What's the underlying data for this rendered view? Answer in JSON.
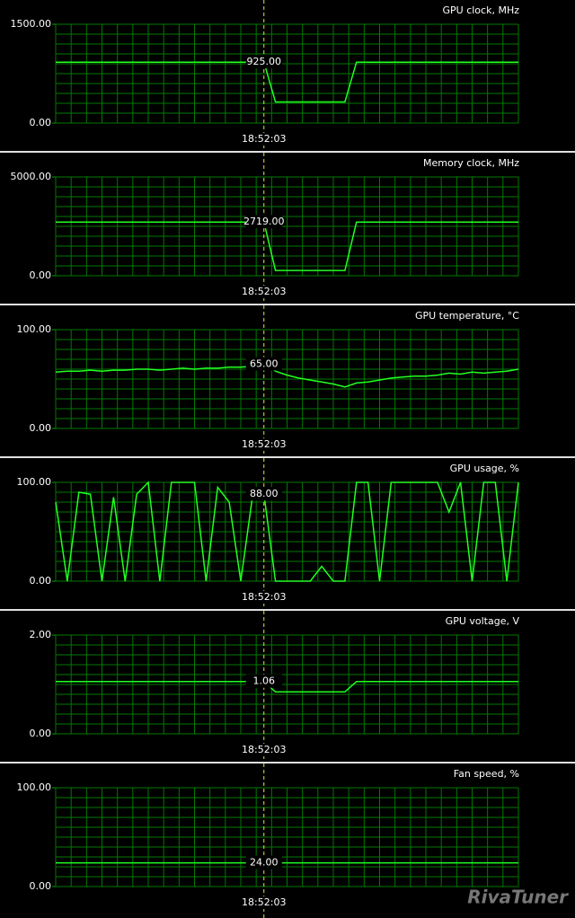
{
  "chart_data": [
    {
      "type": "line",
      "title": "GPU clock, MHz",
      "color": "#22ff22",
      "ylim": [
        0,
        1500
      ],
      "yticks": [
        {
          "value": 0,
          "label": "0.00"
        },
        {
          "value": 1500,
          "label": "1500.00"
        }
      ],
      "categories": [
        null,
        null,
        null,
        null,
        null,
        null,
        null,
        null,
        null,
        null,
        null,
        null,
        null,
        null,
        null,
        null,
        null,
        null,
        "18:52:03",
        null,
        null,
        null,
        null,
        null,
        null,
        null,
        null,
        null,
        null,
        null,
        null,
        null,
        null,
        null,
        null,
        null,
        null,
        null,
        null,
        null,
        null
      ],
      "values": [
        925,
        925,
        925,
        925,
        925,
        925,
        925,
        925,
        925,
        925,
        925,
        925,
        925,
        925,
        925,
        925,
        925,
        925,
        925,
        320,
        320,
        320,
        320,
        320,
        320,
        320,
        925,
        925,
        925,
        925,
        925,
        925,
        925,
        925,
        925,
        925,
        925,
        925,
        925,
        925,
        925
      ],
      "value_labels": [
        null,
        null,
        null,
        null,
        null,
        null,
        null,
        null,
        null,
        null,
        null,
        null,
        null,
        null,
        null,
        null,
        null,
        null,
        "925.00",
        null,
        null,
        null,
        null,
        null,
        null,
        null,
        null,
        null,
        null,
        null,
        null,
        null,
        null,
        null,
        null,
        null,
        null,
        null,
        null,
        null,
        null
      ]
    },
    {
      "type": "line",
      "title": "Memory clock, MHz",
      "color": "#22ff22",
      "ylim": [
        0,
        5000
      ],
      "yticks": [
        {
          "value": 0,
          "label": "0.00"
        },
        {
          "value": 5000,
          "label": "5000.00"
        }
      ],
      "categories": [
        null,
        null,
        null,
        null,
        null,
        null,
        null,
        null,
        null,
        null,
        null,
        null,
        null,
        null,
        null,
        null,
        null,
        null,
        "18:52:03",
        null,
        null,
        null,
        null,
        null,
        null,
        null,
        null,
        null,
        null,
        null,
        null,
        null,
        null,
        null,
        null,
        null,
        null,
        null,
        null,
        null,
        null
      ],
      "values": [
        2719,
        2719,
        2719,
        2719,
        2719,
        2719,
        2719,
        2719,
        2719,
        2719,
        2719,
        2719,
        2719,
        2719,
        2719,
        2719,
        2719,
        2719,
        2719,
        270,
        270,
        270,
        270,
        270,
        270,
        270,
        2719,
        2719,
        2719,
        2719,
        2719,
        2719,
        2719,
        2719,
        2719,
        2719,
        2719,
        2719,
        2719,
        2719,
        2719
      ],
      "value_labels": [
        null,
        null,
        null,
        null,
        null,
        null,
        null,
        null,
        null,
        null,
        null,
        null,
        null,
        null,
        null,
        null,
        null,
        null,
        "2719.00",
        null,
        null,
        null,
        null,
        null,
        null,
        null,
        null,
        null,
        null,
        null,
        null,
        null,
        null,
        null,
        null,
        null,
        null,
        null,
        null,
        null,
        null
      ]
    },
    {
      "type": "line",
      "title": "GPU temperature, °C",
      "color": "#22ff22",
      "ylim": [
        0,
        100
      ],
      "yticks": [
        {
          "value": 0,
          "label": "0.00"
        },
        {
          "value": 100,
          "label": "100.00"
        }
      ],
      "categories": [
        null,
        null,
        null,
        null,
        null,
        null,
        null,
        null,
        null,
        null,
        null,
        null,
        null,
        null,
        null,
        null,
        null,
        null,
        "18:52:03",
        null,
        null,
        null,
        null,
        null,
        null,
        null,
        null,
        null,
        null,
        null,
        null,
        null,
        null,
        null,
        null,
        null,
        null,
        null,
        null,
        null,
        null
      ],
      "values": [
        57,
        58,
        58,
        59,
        58,
        59,
        59,
        60,
        60,
        59,
        60,
        61,
        60,
        61,
        61,
        62,
        62,
        63,
        65,
        58,
        54,
        51,
        49,
        47,
        45,
        42,
        46,
        47,
        49,
        51,
        52,
        53,
        53,
        54,
        56,
        55,
        57,
        56,
        57,
        58,
        60
      ],
      "value_labels": [
        null,
        null,
        null,
        null,
        null,
        null,
        null,
        null,
        null,
        null,
        null,
        null,
        null,
        null,
        null,
        null,
        null,
        null,
        "65.00",
        null,
        null,
        null,
        null,
        null,
        null,
        null,
        null,
        null,
        null,
        null,
        null,
        null,
        null,
        null,
        null,
        null,
        null,
        null,
        null,
        null,
        null
      ]
    },
    {
      "type": "line",
      "title": "GPU usage, %",
      "color": "#22ff22",
      "ylim": [
        0,
        100
      ],
      "yticks": [
        {
          "value": 0,
          "label": "0.00"
        },
        {
          "value": 100,
          "label": "100.00"
        }
      ],
      "categories": [
        null,
        null,
        null,
        null,
        null,
        null,
        null,
        null,
        null,
        null,
        null,
        null,
        null,
        null,
        null,
        null,
        null,
        null,
        "18:52:03",
        null,
        null,
        null,
        null,
        null,
        null,
        null,
        null,
        null,
        null,
        null,
        null,
        null,
        null,
        null,
        null,
        null,
        null,
        null,
        null,
        null,
        null
      ],
      "values": [
        80,
        0,
        90,
        88,
        0,
        85,
        0,
        88,
        100,
        0,
        100,
        100,
        100,
        0,
        95,
        80,
        0,
        85,
        88,
        0,
        0,
        0,
        0,
        15,
        0,
        0,
        100,
        100,
        0,
        100,
        100,
        100,
        100,
        100,
        70,
        100,
        0,
        100,
        100,
        0,
        100
      ],
      "value_labels": [
        null,
        null,
        null,
        null,
        null,
        null,
        null,
        null,
        null,
        null,
        null,
        null,
        null,
        null,
        null,
        null,
        null,
        null,
        "88.00",
        null,
        null,
        null,
        null,
        null,
        null,
        null,
        null,
        null,
        null,
        null,
        null,
        null,
        null,
        null,
        null,
        null,
        null,
        null,
        null,
        null,
        null
      ]
    },
    {
      "type": "line",
      "title": "GPU voltage, V",
      "color": "#22ff22",
      "ylim": [
        0,
        2
      ],
      "yticks": [
        {
          "value": 0,
          "label": "0.00"
        },
        {
          "value": 2,
          "label": "2.00"
        }
      ],
      "categories": [
        null,
        null,
        null,
        null,
        null,
        null,
        null,
        null,
        null,
        null,
        null,
        null,
        null,
        null,
        null,
        null,
        null,
        null,
        "18:52:03",
        null,
        null,
        null,
        null,
        null,
        null,
        null,
        null,
        null,
        null,
        null,
        null,
        null,
        null,
        null,
        null,
        null,
        null,
        null,
        null,
        null,
        null
      ],
      "values": [
        1.06,
        1.06,
        1.06,
        1.06,
        1.06,
        1.06,
        1.06,
        1.06,
        1.06,
        1.06,
        1.06,
        1.06,
        1.06,
        1.06,
        1.06,
        1.06,
        1.06,
        1.06,
        1.06,
        0.85,
        0.85,
        0.85,
        0.85,
        0.85,
        0.85,
        0.85,
        1.06,
        1.06,
        1.06,
        1.06,
        1.06,
        1.06,
        1.06,
        1.06,
        1.06,
        1.06,
        1.06,
        1.06,
        1.06,
        1.06,
        1.06
      ],
      "value_labels": [
        null,
        null,
        null,
        null,
        null,
        null,
        null,
        null,
        null,
        null,
        null,
        null,
        null,
        null,
        null,
        null,
        null,
        null,
        "1.06",
        null,
        null,
        null,
        null,
        null,
        null,
        null,
        null,
        null,
        null,
        null,
        null,
        null,
        null,
        null,
        null,
        null,
        null,
        null,
        null,
        null,
        null
      ]
    },
    {
      "type": "line",
      "title": "Fan speed, %",
      "color": "#22ff22",
      "ylim": [
        0,
        100
      ],
      "yticks": [
        {
          "value": 0,
          "label": "0.00"
        },
        {
          "value": 100,
          "label": "100.00"
        }
      ],
      "categories": [
        null,
        null,
        null,
        null,
        null,
        null,
        null,
        null,
        null,
        null,
        null,
        null,
        null,
        null,
        null,
        null,
        null,
        null,
        "18:52:03",
        null,
        null,
        null,
        null,
        null,
        null,
        null,
        null,
        null,
        null,
        null,
        null,
        null,
        null,
        null,
        null,
        null,
        null,
        null,
        null,
        null,
        null
      ],
      "values": [
        24,
        24,
        24,
        24,
        24,
        24,
        24,
        24,
        24,
        24,
        24,
        24,
        24,
        24,
        24,
        24,
        24,
        24,
        24,
        24,
        24,
        24,
        24,
        24,
        24,
        24,
        24,
        24,
        24,
        24,
        24,
        24,
        24,
        24,
        24,
        24,
        24,
        24,
        24,
        24,
        24
      ],
      "value_labels": [
        null,
        null,
        null,
        null,
        null,
        null,
        null,
        null,
        null,
        null,
        null,
        null,
        null,
        null,
        null,
        null,
        null,
        null,
        "24.00",
        null,
        null,
        null,
        null,
        null,
        null,
        null,
        null,
        null,
        null,
        null,
        null,
        null,
        null,
        null,
        null,
        null,
        null,
        null,
        null,
        null,
        null
      ]
    }
  ],
  "watermark": "RivaTuner"
}
